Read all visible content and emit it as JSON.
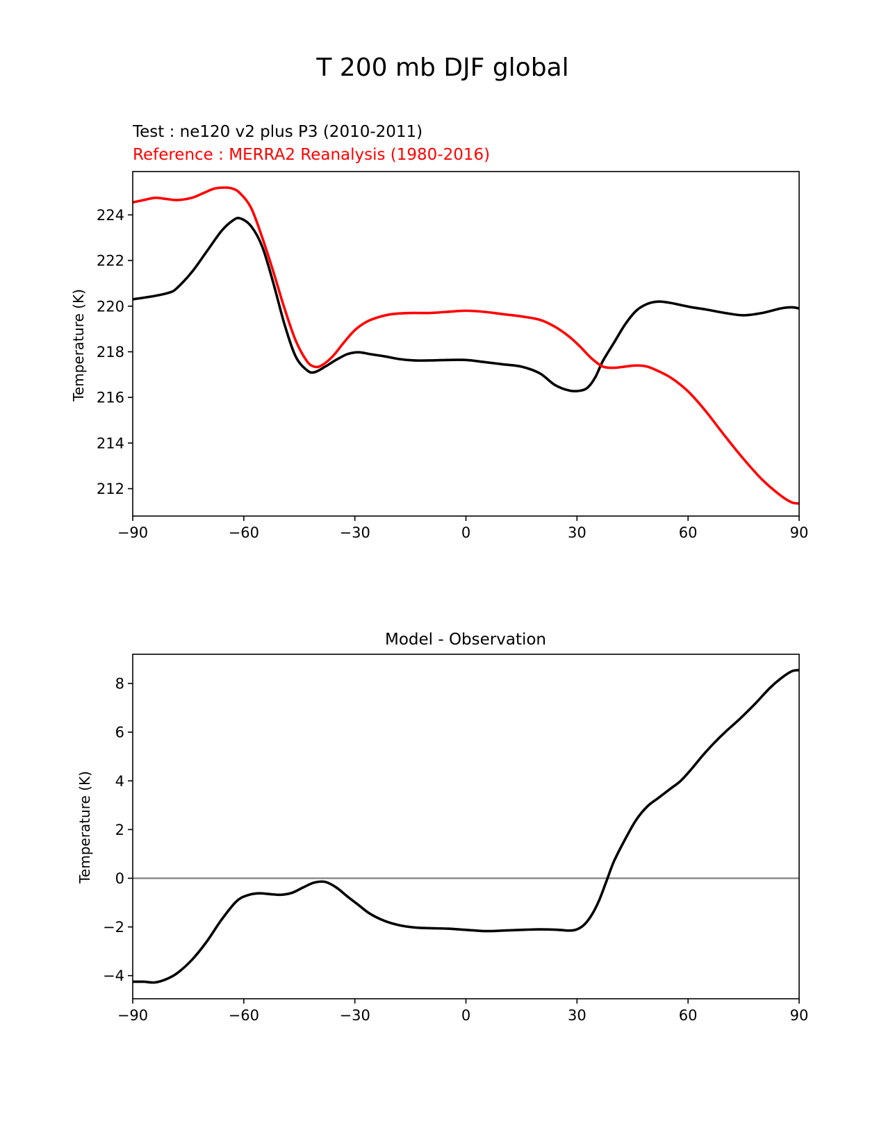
{
  "figure": {
    "suptitle": "T 200 mb DJF global"
  },
  "chart_data": [
    {
      "type": "line",
      "test_label": "Test : ne120 v2 plus P3 (2010-2011)",
      "reference_label": "Reference : MERRA2 Reanalysis (1980-2016)",
      "xlabel": "",
      "ylabel": "Temperature (K)",
      "xlim": [
        -90,
        90
      ],
      "ylim": [
        210.8,
        225.9
      ],
      "xticks": [
        -90,
        -60,
        -30,
        0,
        30,
        60,
        90
      ],
      "xtick_labels": [
        "−90",
        "−60",
        "−30",
        "0",
        "30",
        "60",
        "90"
      ],
      "yticks": [
        212,
        214,
        216,
        218,
        220,
        222,
        224
      ],
      "ytick_labels": [
        "212",
        "214",
        "216",
        "218",
        "220",
        "222",
        "224"
      ],
      "series": [
        {
          "name": "Test : ne120 v2 plus P3 (2010-2011)",
          "color": "#000000",
          "x": [
            -90,
            -84,
            -80,
            -78,
            -74,
            -70,
            -66,
            -63,
            -61,
            -58,
            -55,
            -52,
            -49,
            -46,
            -43,
            -41,
            -38,
            -35,
            -32,
            -29,
            -26,
            -22,
            -18,
            -14,
            -10,
            -5,
            0,
            5,
            10,
            15,
            20,
            24,
            28,
            31,
            33,
            35,
            37,
            40,
            43,
            46,
            49,
            52,
            55,
            58,
            61,
            65,
            70,
            75,
            80,
            85,
            88,
            90
          ],
          "values": [
            220.3,
            220.45,
            220.6,
            220.8,
            221.5,
            222.4,
            223.3,
            223.75,
            223.85,
            223.5,
            222.6,
            221.0,
            219.2,
            217.8,
            217.2,
            217.1,
            217.35,
            217.65,
            217.9,
            217.98,
            217.9,
            217.8,
            217.68,
            217.62,
            217.62,
            217.64,
            217.64,
            217.55,
            217.45,
            217.35,
            217.05,
            216.55,
            216.3,
            216.3,
            216.45,
            216.9,
            217.6,
            218.4,
            219.2,
            219.8,
            220.1,
            220.2,
            220.15,
            220.05,
            219.95,
            219.85,
            219.7,
            219.6,
            219.7,
            219.9,
            219.95,
            219.9
          ]
        },
        {
          "name": "Reference : MERRA2 Reanalysis (1980-2016)",
          "color": "#ff0000",
          "x": [
            -90,
            -87,
            -84,
            -81,
            -78,
            -74,
            -71,
            -68,
            -65,
            -63,
            -61,
            -58,
            -55,
            -52,
            -49,
            -46,
            -43,
            -41,
            -39,
            -36,
            -33,
            -30,
            -27,
            -24,
            -20,
            -15,
            -10,
            -5,
            0,
            5,
            10,
            15,
            20,
            24,
            28,
            31,
            34,
            37,
            40,
            43,
            46,
            49,
            52,
            55,
            58,
            61,
            65,
            70,
            75,
            80,
            85,
            88,
            90
          ],
          "values": [
            224.55,
            224.65,
            224.75,
            224.7,
            224.65,
            224.75,
            224.95,
            225.15,
            225.2,
            225.15,
            224.95,
            224.3,
            223.0,
            221.5,
            219.9,
            218.5,
            217.6,
            217.35,
            217.4,
            217.8,
            218.4,
            218.95,
            219.3,
            219.5,
            219.65,
            219.7,
            219.7,
            219.75,
            219.8,
            219.75,
            219.65,
            219.55,
            219.4,
            219.1,
            218.65,
            218.2,
            217.7,
            217.35,
            217.3,
            217.35,
            217.4,
            217.35,
            217.15,
            216.9,
            216.55,
            216.1,
            215.35,
            214.3,
            213.3,
            212.4,
            211.7,
            211.4,
            211.35
          ]
        }
      ]
    },
    {
      "type": "line",
      "title": "Model - Observation",
      "xlabel": "",
      "ylabel": "Temperature (K)",
      "xlim": [
        -90,
        90
      ],
      "ylim": [
        -4.95,
        9.2
      ],
      "xticks": [
        -90,
        -60,
        -30,
        0,
        30,
        60,
        90
      ],
      "xtick_labels": [
        "−90",
        "−60",
        "−30",
        "0",
        "30",
        "60",
        "90"
      ],
      "yticks": [
        -4,
        -2,
        0,
        2,
        4,
        6,
        8
      ],
      "ytick_labels": [
        "−4",
        "−2",
        "0",
        "2",
        "4",
        "6",
        "8"
      ],
      "zero_line_color": "#808080",
      "series": [
        {
          "name": "Model - Observation",
          "color": "#000000",
          "x": [
            -90,
            -87,
            -84,
            -81,
            -78,
            -74,
            -70,
            -66,
            -62,
            -59,
            -56,
            -53,
            -50,
            -47,
            -44,
            -41,
            -38,
            -35,
            -32,
            -29,
            -26,
            -22,
            -18,
            -14,
            -10,
            -5,
            0,
            5,
            10,
            15,
            20,
            25,
            28,
            30,
            32,
            34,
            36,
            38,
            40,
            43,
            46,
            49,
            52,
            55,
            58,
            61,
            64,
            67,
            70,
            74,
            78,
            82,
            85,
            88,
            90
          ],
          "values": [
            -4.25,
            -4.25,
            -4.28,
            -4.15,
            -3.9,
            -3.35,
            -2.6,
            -1.7,
            -0.95,
            -0.7,
            -0.62,
            -0.65,
            -0.68,
            -0.6,
            -0.38,
            -0.18,
            -0.15,
            -0.38,
            -0.75,
            -1.1,
            -1.45,
            -1.75,
            -1.93,
            -2.02,
            -2.05,
            -2.07,
            -2.12,
            -2.17,
            -2.15,
            -2.12,
            -2.1,
            -2.12,
            -2.15,
            -2.1,
            -1.9,
            -1.5,
            -0.9,
            -0.1,
            0.7,
            1.6,
            2.4,
            2.95,
            3.3,
            3.65,
            4.0,
            4.5,
            5.05,
            5.55,
            6.0,
            6.55,
            7.15,
            7.8,
            8.2,
            8.5,
            8.55
          ]
        }
      ]
    }
  ]
}
